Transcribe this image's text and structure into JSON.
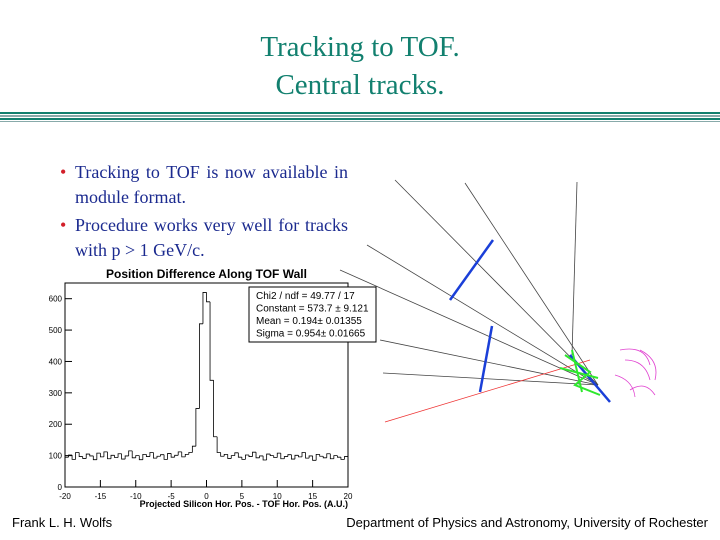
{
  "header": {
    "title_lines": [
      "Tracking to TOF.",
      "Central tracks."
    ]
  },
  "bullets": [
    "Tracking to TOF is now available in module format.",
    "Procedure works very well for tracks with p > 1 GeV/c."
  ],
  "footer": {
    "left": "Frank L. H. Wolfs",
    "right": "Department of Physics and Astronomy, University of Rochester"
  },
  "chart_data": {
    "type": "histogram",
    "title": "Position Difference Along TOF Wall",
    "x_label": "Projected Silicon Hor. Pos. - TOF Hor. Pos. (A.U.)",
    "bins": [
      -20,
      -19.5,
      -19,
      -18.5,
      -18,
      -17.5,
      -17,
      -16.5,
      -16,
      -15.5,
      -15,
      -14.5,
      -14,
      -13.5,
      -13,
      -12.5,
      -12,
      -11.5,
      -11,
      -10.5,
      -10,
      -9.5,
      -9,
      -8.5,
      -8,
      -7.5,
      -7,
      -6.5,
      -6,
      -5.5,
      -5,
      -4.5,
      -4,
      -3.5,
      -3,
      -2.5,
      -2,
      -1.5,
      -1,
      -0.5,
      0,
      0.5,
      1,
      1.5,
      2,
      2.5,
      3,
      3.5,
      4,
      4.5,
      5,
      5.5,
      6,
      6.5,
      7,
      7.5,
      8,
      8.5,
      9,
      9.5,
      10,
      10.5,
      11,
      11.5,
      12,
      12.5,
      13,
      13.5,
      14,
      14.5,
      15,
      15.5,
      16,
      16.5,
      17,
      17.5,
      18,
      18.5,
      19,
      19.5,
      20
    ],
    "values": [
      95,
      102,
      88,
      110,
      97,
      91,
      105,
      99,
      87,
      108,
      96,
      112,
      90,
      101,
      94,
      106,
      89,
      99,
      115,
      93,
      100,
      87,
      104,
      97,
      110,
      92,
      98,
      103,
      88,
      107,
      95,
      101,
      112,
      96,
      104,
      110,
      130,
      250,
      520,
      620,
      590,
      340,
      160,
      110,
      98,
      104,
      91,
      100,
      109,
      95,
      88,
      102,
      97,
      111,
      93,
      99,
      86,
      105,
      100,
      94,
      108,
      90,
      97,
      103,
      89,
      101,
      96,
      110,
      92,
      99,
      85,
      104,
      98,
      93,
      106,
      90,
      100,
      95,
      88,
      97
    ],
    "color": "#000000",
    "xlim": [
      -20,
      20
    ],
    "ylim": [
      0,
      650
    ],
    "xticks": [
      -20,
      -15,
      -10,
      -5,
      0,
      5,
      10,
      15,
      20
    ],
    "yticks": [
      0,
      100,
      200,
      300,
      400,
      500,
      600
    ],
    "stats": [
      "Chi2 / ndf = 49.77 / 17",
      "Constant = 573.7 ± 9.121",
      "Mean    = 0.194± 0.01355",
      "Sigma   = 0.954± 0.01665"
    ]
  }
}
